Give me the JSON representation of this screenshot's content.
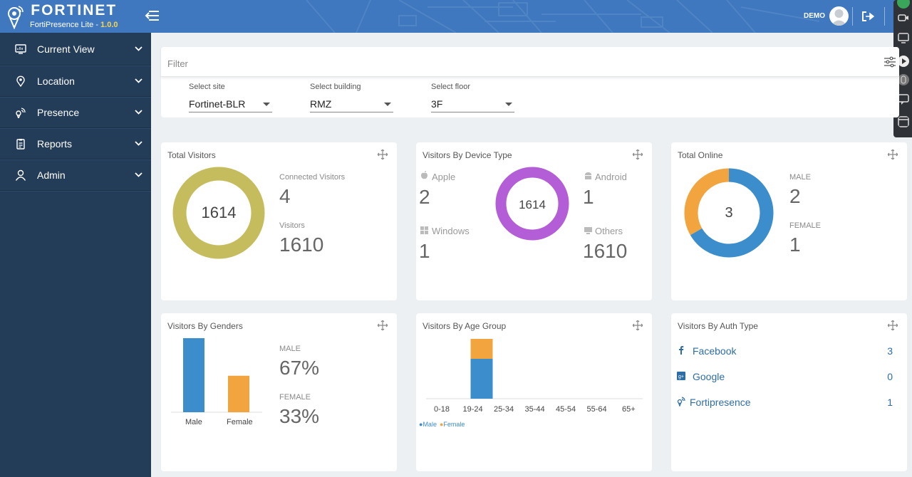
{
  "header": {
    "logo_text": "FORTINET",
    "product_name": "FortiPresence Lite - ",
    "version": "1.0.0",
    "username": "DEMO",
    "menu_toggle_icon": "menu-collapse-icon",
    "logout_icon": "logout-icon",
    "brand_color": "#3f78be"
  },
  "sidebar": {
    "background": "#233c58",
    "items": [
      {
        "label": "Current View",
        "icon": "monitor-icon"
      },
      {
        "label": "Location",
        "icon": "location-pin-icon"
      },
      {
        "label": "Presence",
        "icon": "presence-wifi-icon"
      },
      {
        "label": "Reports",
        "icon": "clipboard-icon"
      },
      {
        "label": "Admin",
        "icon": "user-icon"
      }
    ]
  },
  "filter": {
    "label": "Filter",
    "site": {
      "caption": "Select site",
      "value": "Fortinet-BLR"
    },
    "building": {
      "caption": "Select building",
      "value": "RMZ"
    },
    "floor": {
      "caption": "Select floor",
      "value": "3F"
    }
  },
  "total_visitors": {
    "title": "Total Visitors",
    "total": "1614",
    "connected_label": "Connected Visitors",
    "connected_value": "4",
    "visitors_label": "Visitors",
    "visitors_value": "1610",
    "color": "#c5bd5d"
  },
  "device_type": {
    "title": "Visitors By Device Type",
    "total": "1614",
    "apple_label": "Apple",
    "apple_value": "2",
    "windows_label": "Windows",
    "windows_value": "1",
    "android_label": "Android",
    "android_value": "1",
    "others_label": "Others",
    "others_value": "1610",
    "color": "#b35dd6"
  },
  "total_online": {
    "title": "Total Online",
    "total": "3",
    "male_label": "MALE",
    "male_value": "2",
    "female_label": "FEMALE",
    "female_value": "1",
    "male_color": "#3c8dcb",
    "female_color": "#f2a53f"
  },
  "genders": {
    "title": "Visitors By Genders",
    "male_label": "MALE",
    "male_pct": "67%",
    "female_label": "FEMALE",
    "female_pct": "33%",
    "categories": [
      "Male",
      "Female"
    ],
    "values": [
      67,
      33
    ]
  },
  "age_group": {
    "title": "Visitors By Age Group",
    "categories": [
      "0-18",
      "19-24",
      "25-34",
      "35-44",
      "45-54",
      "55-64",
      "65+"
    ],
    "male": [
      0,
      2,
      0,
      0,
      0,
      0,
      0
    ],
    "female": [
      0,
      1,
      0,
      0,
      0,
      0,
      0
    ],
    "legend_male": "Male",
    "legend_female": "Female"
  },
  "auth_type": {
    "title": "Visitors By Auth Type",
    "rows": [
      {
        "name": "Facebook",
        "value": "3",
        "icon": "facebook-icon"
      },
      {
        "name": "Google",
        "value": "0",
        "icon": "google-icon"
      },
      {
        "name": "Fortipresence",
        "value": "1",
        "icon": "fortipresence-icon"
      }
    ]
  },
  "chart_data": [
    {
      "type": "pie",
      "title": "Total Visitors",
      "categories": [
        "Visitors",
        "Connected Visitors"
      ],
      "values": [
        1610,
        4
      ]
    },
    {
      "type": "pie",
      "title": "Visitors By Device Type",
      "categories": [
        "Apple",
        "Windows",
        "Android",
        "Others"
      ],
      "values": [
        2,
        1,
        1,
        1610
      ]
    },
    {
      "type": "pie",
      "title": "Total Online",
      "categories": [
        "MALE",
        "FEMALE"
      ],
      "values": [
        2,
        1
      ]
    },
    {
      "type": "bar",
      "title": "Visitors By Genders",
      "categories": [
        "Male",
        "Female"
      ],
      "values": [
        67,
        33
      ]
    },
    {
      "type": "bar",
      "title": "Visitors By Age Group",
      "categories": [
        "0-18",
        "19-24",
        "25-34",
        "35-44",
        "45-54",
        "55-64",
        "65+"
      ],
      "series": [
        {
          "name": "Male",
          "values": [
            0,
            2,
            0,
            0,
            0,
            0,
            0
          ]
        },
        {
          "name": "Female",
          "values": [
            0,
            1,
            0,
            0,
            0,
            0,
            0
          ]
        }
      ]
    }
  ]
}
